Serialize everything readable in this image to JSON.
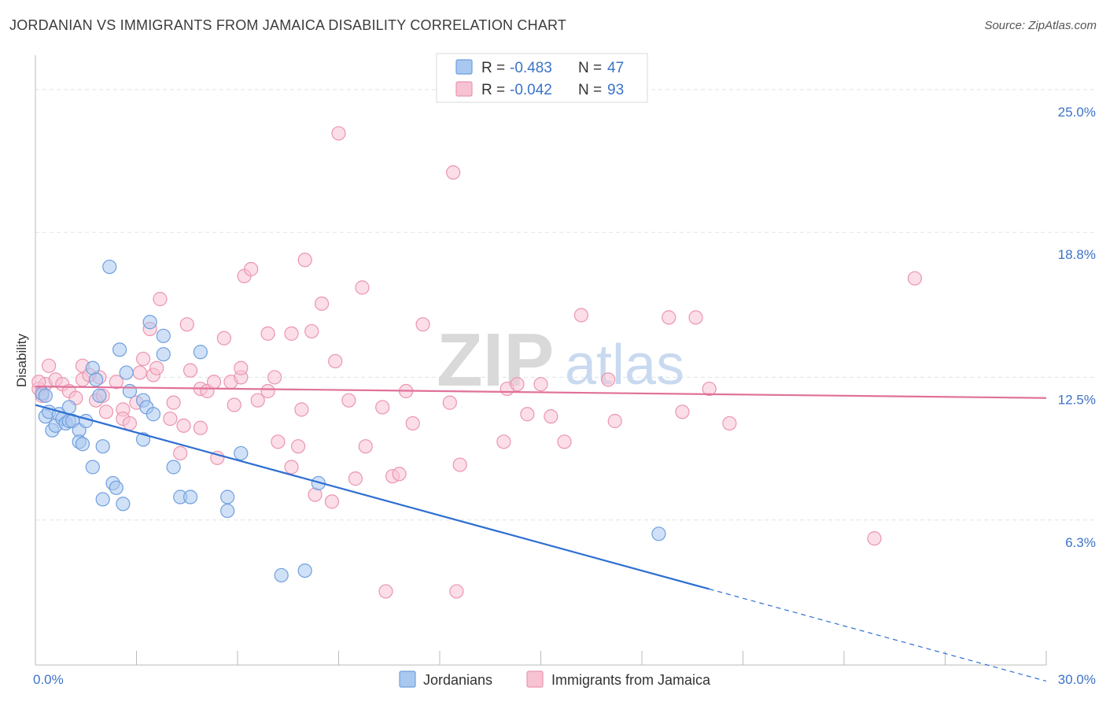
{
  "title": "JORDANIAN VS IMMIGRANTS FROM JAMAICA DISABILITY CORRELATION CHART",
  "source": "Source: ZipAtlas.com",
  "watermark": {
    "zip": "ZIP",
    "atlas": "atlas"
  },
  "colors": {
    "blue_fill": "#a9c8f0",
    "blue_stroke": "#6f9fde",
    "blue_line": "#2e6fd1",
    "pink_fill": "#f7c3d3",
    "pink_stroke": "#eb95b0",
    "pink_line": "#e0719a",
    "grid": "#dde3ea",
    "axis_label": "#3b73c8"
  },
  "legend": {
    "rows": [
      {
        "r_label": "R =",
        "r_value": "-0.483",
        "n_label": "N =",
        "n_value": "47",
        "series": "Jordanians"
      },
      {
        "r_label": "R =",
        "r_value": "-0.042",
        "n_label": "N =",
        "n_value": "93",
        "series": "Immigrants from Jamaica"
      }
    ]
  },
  "chart_data": {
    "type": "scatter",
    "xlabel": "",
    "ylabel": "Disability",
    "xlim": [
      0,
      30
    ],
    "ylim": [
      0,
      26.5
    ],
    "x_tick_labels": [
      "0.0%",
      "30.0%"
    ],
    "y_ticks": [
      6.3,
      12.5,
      18.8,
      25.0
    ],
    "y_tick_labels": [
      "6.3%",
      "12.5%",
      "18.8%",
      "25.0%"
    ],
    "grid": true,
    "legend_position": "top-center",
    "series": [
      {
        "name": "Jordanians",
        "color": "blue",
        "trend": {
          "x0": 0,
          "y0": 11.3,
          "x1": 20,
          "y1": 3.3,
          "dashed_to_x": 30,
          "dashed_to_y": -0.7
        },
        "points": [
          [
            0.2,
            11.8
          ],
          [
            0.3,
            10.8
          ],
          [
            0.4,
            11.0
          ],
          [
            0.5,
            10.2
          ],
          [
            0.6,
            10.4
          ],
          [
            0.7,
            10.9
          ],
          [
            0.8,
            10.7
          ],
          [
            0.9,
            10.5
          ],
          [
            1.0,
            11.2
          ],
          [
            1.0,
            10.6
          ],
          [
            1.1,
            10.6
          ],
          [
            1.3,
            10.2
          ],
          [
            1.3,
            9.7
          ],
          [
            1.4,
            9.6
          ],
          [
            1.5,
            10.6
          ],
          [
            1.7,
            12.9
          ],
          [
            1.7,
            8.6
          ],
          [
            1.8,
            12.4
          ],
          [
            1.9,
            11.7
          ],
          [
            2.0,
            9.5
          ],
          [
            2.0,
            7.2
          ],
          [
            2.2,
            17.3
          ],
          [
            2.3,
            7.9
          ],
          [
            2.4,
            7.7
          ],
          [
            2.5,
            13.7
          ],
          [
            2.6,
            7.0
          ],
          [
            2.7,
            12.7
          ],
          [
            3.2,
            11.5
          ],
          [
            3.2,
            9.8
          ],
          [
            3.3,
            11.2
          ],
          [
            3.4,
            14.9
          ],
          [
            3.5,
            10.9
          ],
          [
            3.8,
            14.3
          ],
          [
            3.8,
            13.5
          ],
          [
            4.1,
            8.6
          ],
          [
            4.3,
            7.3
          ],
          [
            4.6,
            7.3
          ],
          [
            4.9,
            13.6
          ],
          [
            5.7,
            6.7
          ],
          [
            5.7,
            7.3
          ],
          [
            6.1,
            9.2
          ],
          [
            7.3,
            3.9
          ],
          [
            8.0,
            4.1
          ],
          [
            8.4,
            7.9
          ],
          [
            18.5,
            5.7
          ],
          [
            0.3,
            11.7
          ],
          [
            2.8,
            11.9
          ]
        ]
      },
      {
        "name": "Immigrants from Jamaica",
        "color": "pink",
        "trend": {
          "x0": 0,
          "y0": 12.1,
          "x1": 30,
          "y1": 11.6
        },
        "points": [
          [
            0.1,
            12.0
          ],
          [
            0.2,
            11.7
          ],
          [
            0.3,
            12.2
          ],
          [
            0.4,
            13.0
          ],
          [
            0.6,
            12.4
          ],
          [
            0.8,
            12.2
          ],
          [
            1.0,
            11.9
          ],
          [
            1.2,
            11.6
          ],
          [
            1.4,
            13.0
          ],
          [
            1.4,
            12.4
          ],
          [
            1.6,
            12.6
          ],
          [
            1.8,
            11.5
          ],
          [
            2.0,
            11.7
          ],
          [
            2.1,
            11.0
          ],
          [
            2.4,
            12.3
          ],
          [
            2.6,
            11.1
          ],
          [
            2.6,
            10.7
          ],
          [
            2.8,
            10.5
          ],
          [
            3.0,
            11.4
          ],
          [
            3.1,
            12.7
          ],
          [
            3.2,
            13.3
          ],
          [
            3.4,
            14.6
          ],
          [
            3.5,
            12.6
          ],
          [
            3.6,
            12.9
          ],
          [
            3.7,
            15.9
          ],
          [
            4.0,
            10.7
          ],
          [
            4.1,
            11.4
          ],
          [
            4.3,
            9.2
          ],
          [
            4.4,
            10.4
          ],
          [
            4.5,
            14.8
          ],
          [
            4.6,
            12.8
          ],
          [
            4.9,
            12.0
          ],
          [
            4.9,
            10.3
          ],
          [
            5.1,
            11.9
          ],
          [
            5.3,
            12.3
          ],
          [
            5.4,
            9.0
          ],
          [
            5.6,
            14.2
          ],
          [
            5.8,
            12.3
          ],
          [
            5.9,
            11.3
          ],
          [
            6.1,
            12.5
          ],
          [
            6.1,
            12.9
          ],
          [
            6.2,
            16.9
          ],
          [
            6.4,
            17.2
          ],
          [
            6.6,
            11.5
          ],
          [
            6.9,
            11.9
          ],
          [
            6.9,
            14.4
          ],
          [
            7.1,
            12.5
          ],
          [
            7.2,
            9.7
          ],
          [
            7.6,
            14.4
          ],
          [
            7.6,
            8.6
          ],
          [
            7.8,
            9.5
          ],
          [
            7.9,
            11.1
          ],
          [
            8.0,
            17.6
          ],
          [
            8.2,
            14.5
          ],
          [
            8.3,
            7.4
          ],
          [
            8.5,
            15.7
          ],
          [
            8.8,
            7.1
          ],
          [
            8.9,
            13.2
          ],
          [
            9.0,
            23.1
          ],
          [
            9.3,
            11.5
          ],
          [
            9.5,
            8.1
          ],
          [
            9.7,
            16.4
          ],
          [
            9.8,
            9.5
          ],
          [
            10.3,
            11.2
          ],
          [
            10.6,
            8.2
          ],
          [
            10.8,
            8.3
          ],
          [
            11.0,
            11.9
          ],
          [
            11.2,
            10.5
          ],
          [
            11.5,
            14.8
          ],
          [
            12.3,
            11.4
          ],
          [
            12.4,
            21.4
          ],
          [
            12.6,
            8.7
          ],
          [
            13.9,
            9.7
          ],
          [
            14.0,
            12.0
          ],
          [
            14.3,
            12.2
          ],
          [
            14.6,
            10.9
          ],
          [
            15.0,
            12.2
          ],
          [
            15.3,
            10.8
          ],
          [
            15.7,
            9.7
          ],
          [
            16.2,
            15.2
          ],
          [
            17.0,
            12.4
          ],
          [
            17.2,
            10.6
          ],
          [
            18.8,
            15.1
          ],
          [
            19.2,
            11.0
          ],
          [
            19.6,
            15.1
          ],
          [
            20.0,
            12.0
          ],
          [
            20.6,
            10.5
          ],
          [
            24.9,
            5.5
          ],
          [
            26.1,
            16.8
          ],
          [
            12.5,
            3.2
          ],
          [
            10.4,
            3.2
          ],
          [
            0.1,
            12.3
          ],
          [
            1.9,
            12.5
          ]
        ]
      }
    ]
  },
  "bottom_legend": [
    "Jordanians",
    "Immigrants from Jamaica"
  ]
}
